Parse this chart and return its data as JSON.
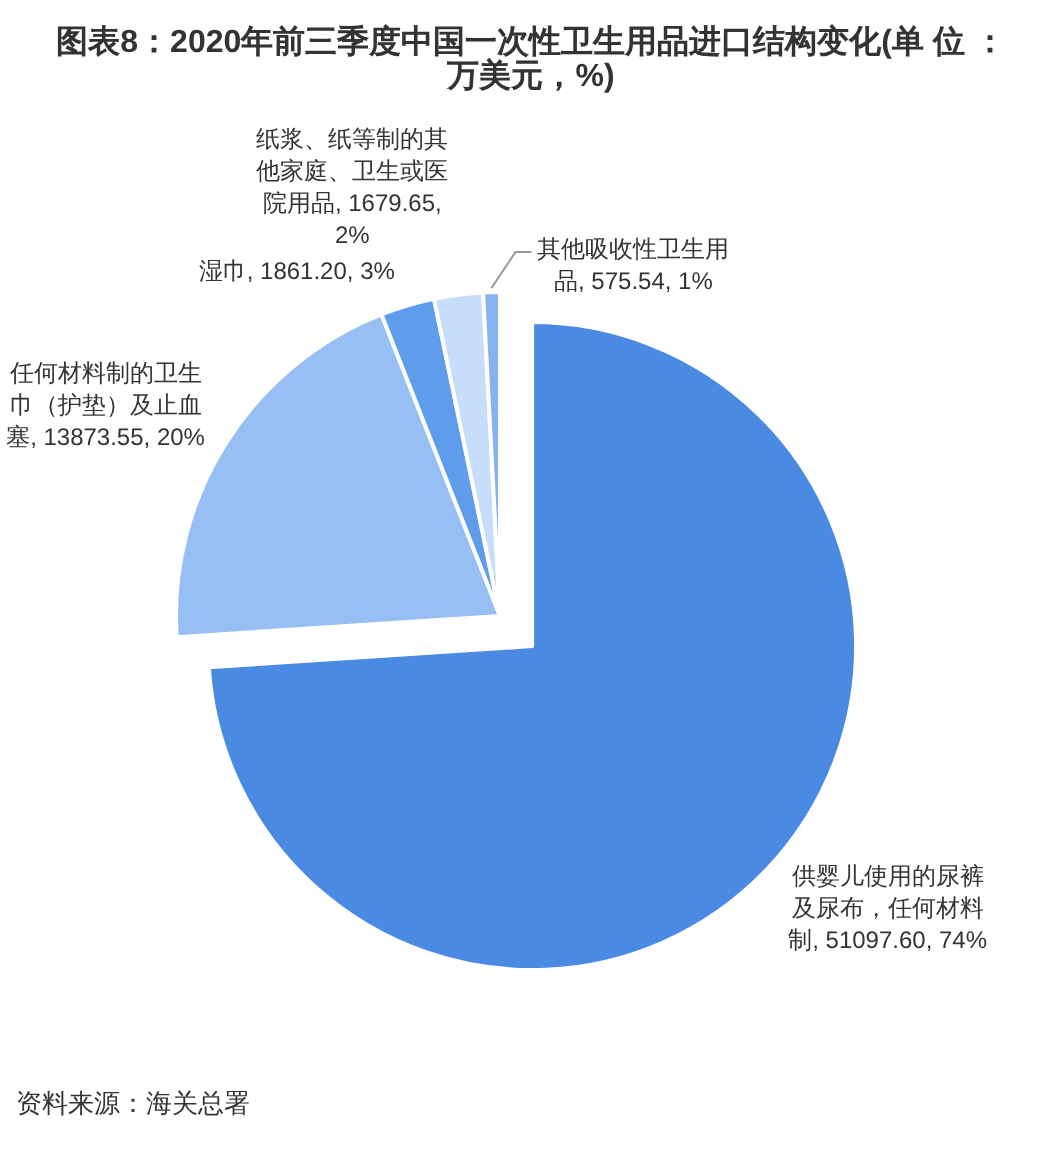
{
  "chart_data": {
    "type": "pie",
    "title": "图表8：2020年前三季度中国一次性卫生用品进口结构变化(单 位 ：万美元，%)",
    "categories": [
      "供婴儿使用的尿裤及尿布，任何材料制",
      "任何材料制的卫生巾（护垫）及止血塞",
      "湿巾",
      "纸浆、纸等制的其他家庭、卫生或医院用品",
      "其他吸收性卫生用品"
    ],
    "values": [
      51097.6,
      13873.55,
      1861.2,
      1679.65,
      575.54
    ],
    "colors": [
      "#4a8ae2",
      "#97bff4",
      "#5f9cec",
      "#c6ddfb",
      "#86b3f0"
    ],
    "value_labels": [
      "51097.60, 74%",
      "13873.55, 20%",
      "1861.20, 3%",
      "1679.65, 2%",
      "575.54, 1%"
    ],
    "annotations": [
      "资料来源：海关总署"
    ]
  }
}
